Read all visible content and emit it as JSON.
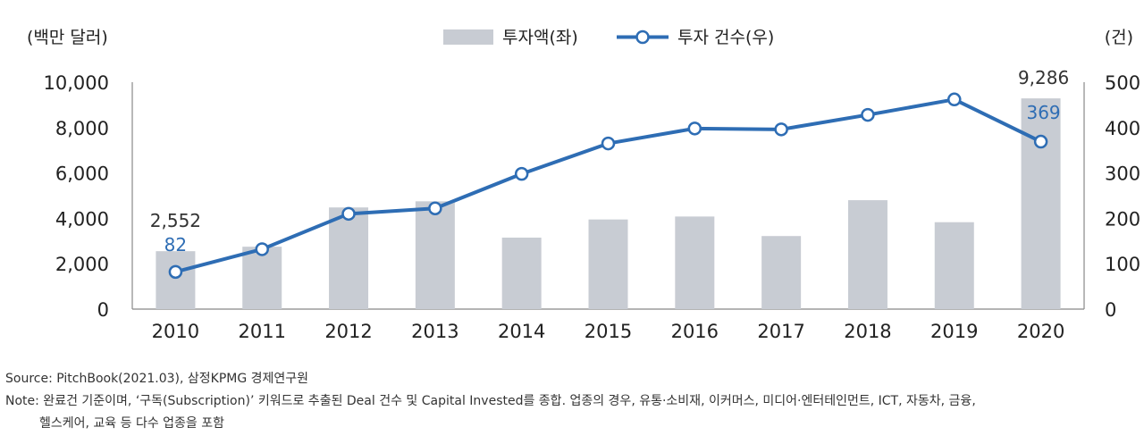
{
  "chart_data": {
    "type": "bar+line",
    "categories": [
      "2010",
      "2011",
      "2012",
      "2013",
      "2014",
      "2015",
      "2016",
      "2017",
      "2018",
      "2019",
      "2020"
    ],
    "series": [
      {
        "name": "투자액(좌)",
        "type": "bar",
        "axis": "left",
        "color": "#c8ccd3",
        "values": [
          2552,
          2750,
          4480,
          4750,
          3150,
          3950,
          4080,
          3220,
          4800,
          3830,
          9286
        ]
      },
      {
        "name": "투자 건수(우)",
        "type": "line",
        "axis": "right",
        "color": "#2e6db4",
        "values": [
          82,
          132,
          210,
          222,
          298,
          365,
          398,
          396,
          428,
          462,
          369
        ]
      }
    ],
    "left_axis": {
      "unit_label": "(백만 달러)",
      "ylim": [
        0,
        10000
      ],
      "ticks": [
        "10,000",
        "8,000",
        "6,000",
        "4,000",
        "2,000",
        "0"
      ]
    },
    "right_axis": {
      "unit_label": "(건)",
      "ylim": [
        0,
        500
      ],
      "ticks": [
        "500",
        "400",
        "300",
        "200",
        "100",
        "0"
      ]
    },
    "data_labels": {
      "bar_2010": "2,552",
      "line_2010": "82",
      "bar_2020": "9,286",
      "line_2020": "369"
    },
    "legend_position": "top-center",
    "grid": false
  },
  "notes": {
    "source": "Source: PitchBook(2021.03), 삼정KPMG 경제연구원",
    "note_line1": "Note: 완료건 기준이며, ‘구독(Subscription)’ 키워드로 추출된 Deal 건수 및 Capital Invested를 종합. 업종의 경우, 유통·소비재, 이커머스, 미디어·엔터테인먼트, ICT, 자동차, 금융,",
    "note_line2": "헬스케어, 교육 등 다수 업종을 포함"
  }
}
